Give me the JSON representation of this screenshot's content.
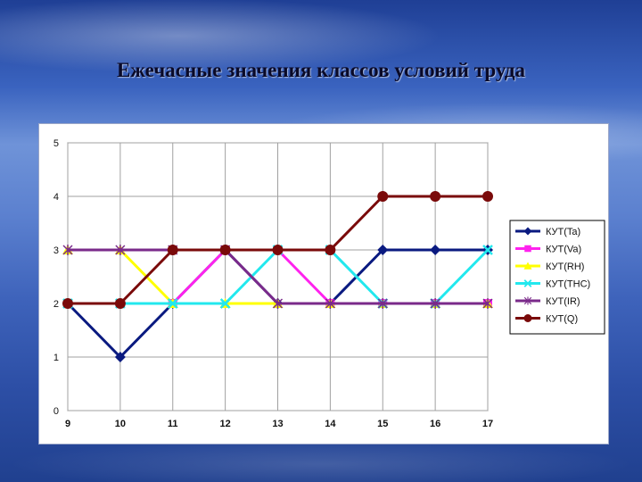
{
  "slide": {
    "title": "Ежечасные значения классов условий труда"
  },
  "chart_data": {
    "type": "line",
    "title": "",
    "xlabel": "",
    "ylabel": "",
    "x": [
      9,
      10,
      11,
      12,
      13,
      14,
      15,
      16,
      17
    ],
    "ylim": [
      0,
      5
    ],
    "yticks": [
      0,
      1,
      2,
      3,
      4,
      5
    ],
    "grid": true,
    "legend": "right",
    "series": [
      {
        "name": "КУТ(Ta)",
        "values": [
          2,
          1,
          2,
          3,
          2,
          2,
          3,
          3,
          3
        ],
        "color": "#0a1a80",
        "marker": "diamond"
      },
      {
        "name": "КУТ(Va)",
        "values": [
          2,
          2,
          2,
          3,
          3,
          2,
          2,
          2,
          2
        ],
        "color": "#ff22ee",
        "marker": "square"
      },
      {
        "name": "КУТ(RH)",
        "values": [
          3,
          3,
          2,
          2,
          2,
          2,
          2,
          2,
          2
        ],
        "color": "#ffff00",
        "marker": "triangle"
      },
      {
        "name": "КУТ(THC)",
        "values": [
          2,
          2,
          2,
          2,
          3,
          3,
          2,
          2,
          3
        ],
        "color": "#22e8ee",
        "marker": "x"
      },
      {
        "name": "КУТ(IR)",
        "values": [
          3,
          3,
          3,
          3,
          2,
          2,
          2,
          2,
          2
        ],
        "color": "#7a2a8a",
        "marker": "star"
      },
      {
        "name": "КУТ(Q)",
        "values": [
          2,
          2,
          3,
          3,
          3,
          3,
          4,
          4,
          4
        ],
        "color": "#7a0a0a",
        "marker": "circle"
      }
    ]
  }
}
